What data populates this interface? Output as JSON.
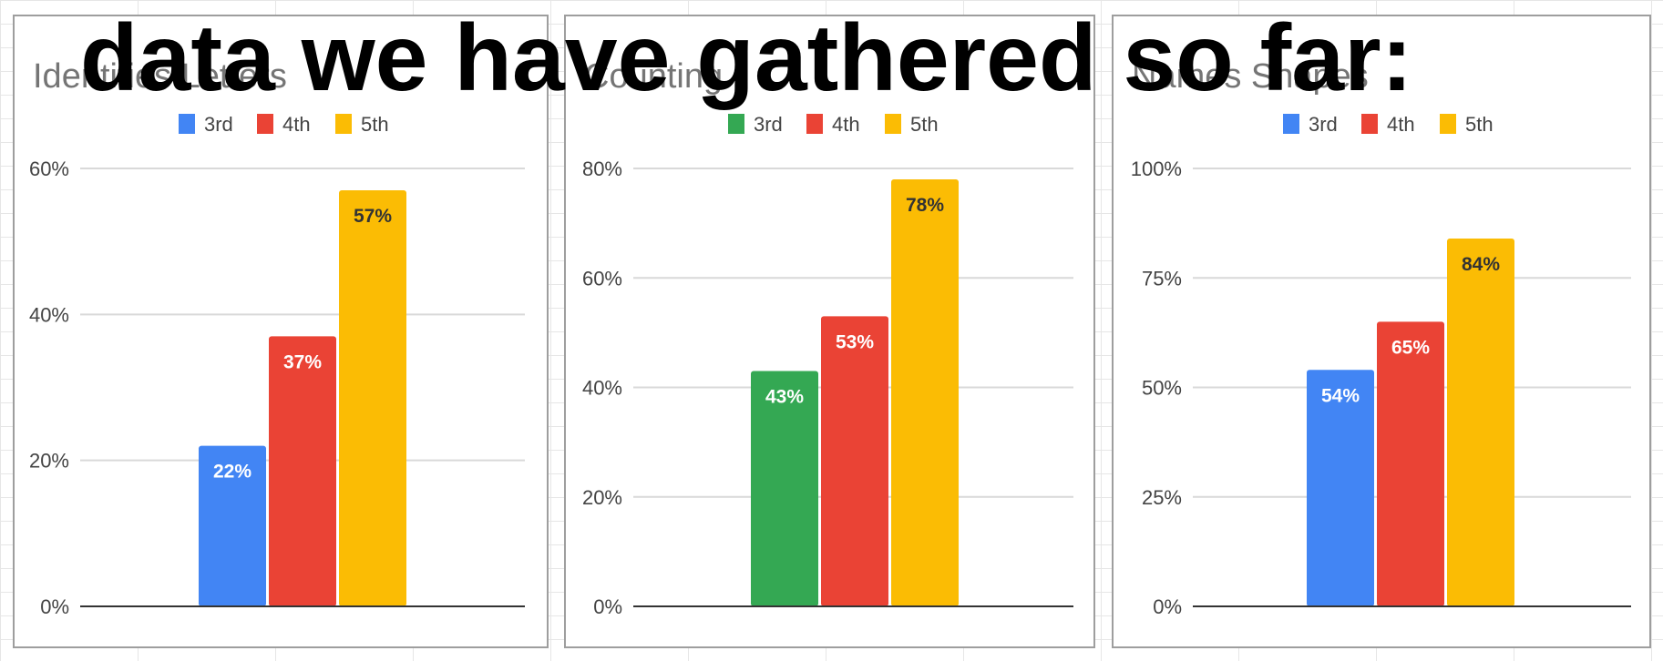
{
  "overlay_heading": "data we have gathered so far:",
  "chart_data": [
    {
      "type": "bar",
      "title": "Identifies Letters",
      "categories": [
        "3rd",
        "4th",
        "5th"
      ],
      "series": [
        {
          "name": "3rd",
          "values": [
            22,
            null,
            null
          ],
          "color": "#4285f4"
        },
        {
          "name": "4th",
          "values": [
            null,
            37,
            null
          ],
          "color": "#ea4335"
        },
        {
          "name": "5th",
          "values": [
            null,
            null,
            57
          ],
          "color": "#fbbc04"
        }
      ],
      "data_labels": [
        "22%",
        "37%",
        "57%"
      ],
      "label_colors": [
        "#ffffff",
        "#ffffff",
        "#333333"
      ],
      "yticks": [
        0,
        20,
        40,
        60
      ],
      "ytick_labels": [
        "0%",
        "20%",
        "40%",
        "60%"
      ],
      "ylim": [
        0,
        60
      ],
      "legend_position": "top",
      "grid": true
    },
    {
      "type": "bar",
      "title": "Counting",
      "categories": [
        "3rd",
        "4th",
        "5th"
      ],
      "series": [
        {
          "name": "3rd",
          "values": [
            43,
            null,
            null
          ],
          "color": "#34a853"
        },
        {
          "name": "4th",
          "values": [
            null,
            53,
            null
          ],
          "color": "#ea4335"
        },
        {
          "name": "5th",
          "values": [
            null,
            null,
            78
          ],
          "color": "#fbbc04"
        }
      ],
      "data_labels": [
        "43%",
        "53%",
        "78%"
      ],
      "label_colors": [
        "#ffffff",
        "#ffffff",
        "#333333"
      ],
      "yticks": [
        0,
        20,
        40,
        60,
        80
      ],
      "ytick_labels": [
        "0%",
        "20%",
        "40%",
        "60%",
        "80%"
      ],
      "ylim": [
        0,
        80
      ],
      "legend_position": "top",
      "grid": true
    },
    {
      "type": "bar",
      "title": "Names Shapes",
      "categories": [
        "3rd",
        "4th",
        "5th"
      ],
      "series": [
        {
          "name": "3rd",
          "values": [
            54,
            null,
            null
          ],
          "color": "#4285f4"
        },
        {
          "name": "4th",
          "values": [
            null,
            65,
            null
          ],
          "color": "#ea4335"
        },
        {
          "name": "5th",
          "values": [
            null,
            null,
            84
          ],
          "color": "#fbbc04"
        }
      ],
      "data_labels": [
        "54%",
        "65%",
        "84%"
      ],
      "label_colors": [
        "#ffffff",
        "#ffffff",
        "#333333"
      ],
      "yticks": [
        0,
        25,
        50,
        75,
        100
      ],
      "ytick_labels": [
        "0%",
        "25%",
        "50%",
        "75%",
        "100%"
      ],
      "ylim": [
        0,
        100
      ],
      "legend_position": "top",
      "grid": true
    }
  ]
}
